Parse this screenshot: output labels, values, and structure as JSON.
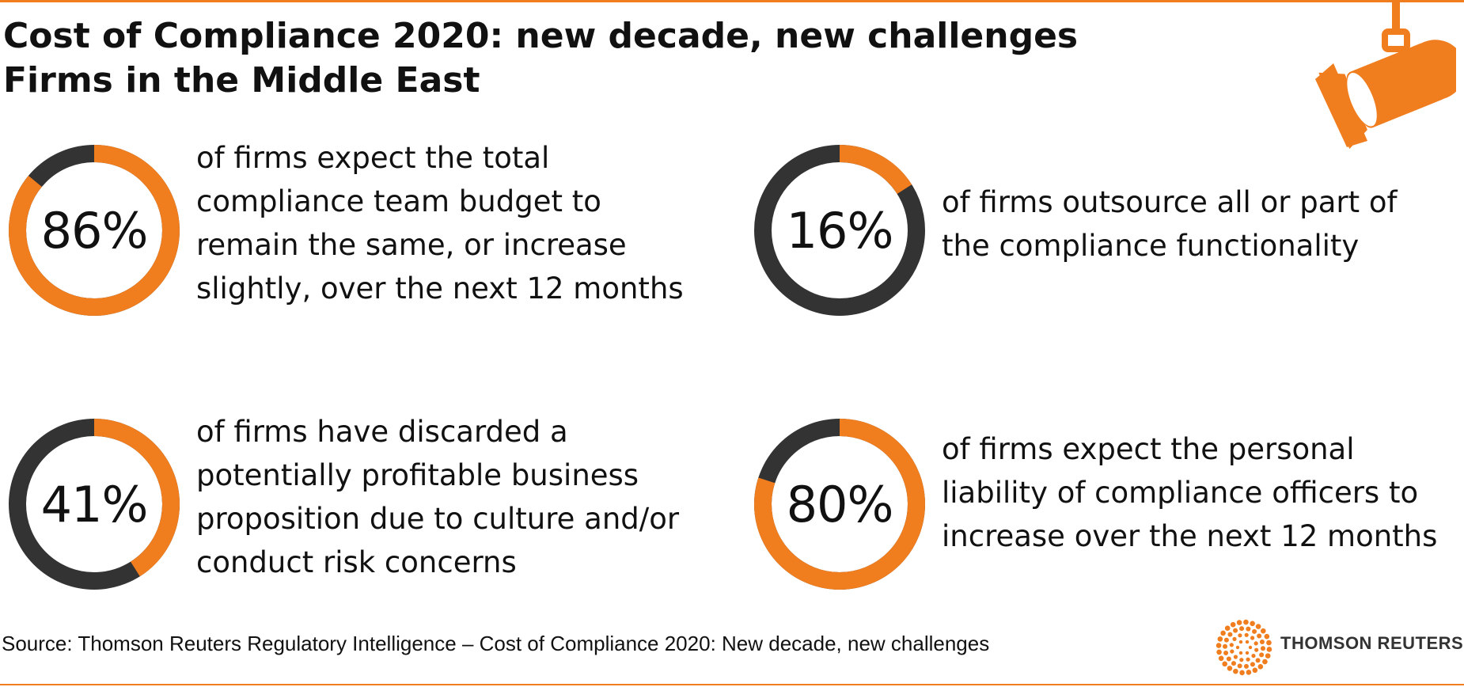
{
  "header": {
    "title_line1": "Cost of Compliance 2020: new decade, new challenges",
    "title_line2": "Firms in the Middle East"
  },
  "colors": {
    "accent": "#f07d1e",
    "dark": "#333333"
  },
  "chart_data": {
    "type": "pie",
    "title": "Cost of Compliance 2020: new decade, new challenges — Firms in the Middle East",
    "charts": [
      {
        "value": 86,
        "label": "86%",
        "text": [
          "of firms expect the total",
          "compliance team budget to",
          "remain the same, or increase",
          "slightly, over the next 12 months"
        ]
      },
      {
        "value": 16,
        "label": "16%",
        "text": [
          "of firms outsource all or part of",
          "the compliance functionality"
        ]
      },
      {
        "value": 41,
        "label": "41%",
        "text": [
          "of firms have discarded a",
          "potentially profitable business",
          "proposition due to culture and/or",
          "conduct risk concerns"
        ]
      },
      {
        "value": 80,
        "label": "80%",
        "text": [
          "of firms expect the personal",
          "liability of compliance officers  to",
          "increase over the next 12 months"
        ]
      }
    ]
  },
  "footer": {
    "source": "Source: Thomson Reuters Regulatory Intelligence – Cost of Compliance 2020: New decade, new challenges",
    "brand": "THOMSON REUTERS"
  },
  "icons": {
    "spotlight": "spotlight-icon",
    "brand_mark": "thomson-reuters-logo-icon"
  }
}
